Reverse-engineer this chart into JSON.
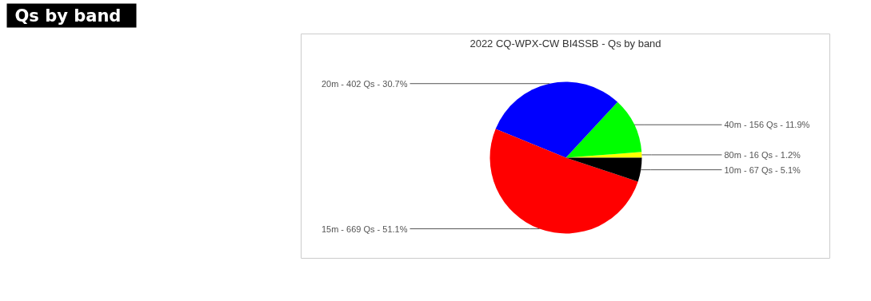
{
  "chart_data": {
    "type": "pie",
    "title": "2022 CQ-WPX-CW BI4SSB - Qs by band",
    "annotations": [
      "Qs by band"
    ],
    "categories": [
      "80m - 16 Qs - 1.2%",
      "40m - 156 Qs - 11.9%",
      "20m - 402 Qs - 30.7%",
      "15m - 669 Qs - 51.1%",
      "10m - 67 Qs - 5.1%"
    ],
    "values": [
      1.2,
      11.9,
      30.7,
      51.1,
      5.1
    ],
    "colors": [
      "#ffff00",
      "#00ff00",
      "#0000ff",
      "#ff0000",
      "#000000"
    ]
  }
}
